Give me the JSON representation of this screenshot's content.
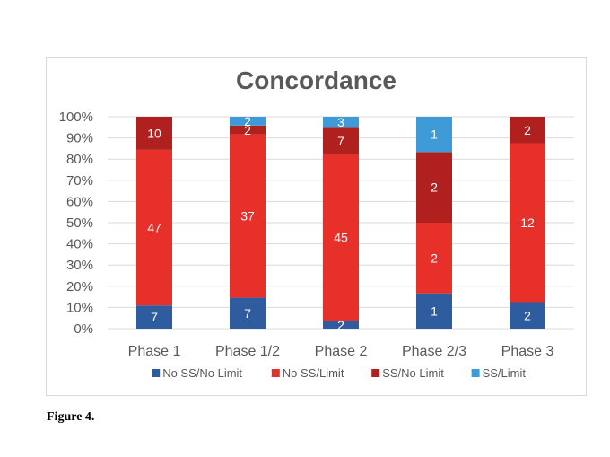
{
  "caption": "Figure 4.",
  "chart_data": {
    "type": "bar",
    "stacked": "percent",
    "title": "Concordance",
    "xlabel": "",
    "ylabel": "",
    "ylim": [
      0,
      100
    ],
    "yticks": [
      "0%",
      "10%",
      "20%",
      "30%",
      "40%",
      "50%",
      "60%",
      "70%",
      "80%",
      "90%",
      "100%"
    ],
    "grid": true,
    "legend_position": "bottom",
    "categories": [
      "Phase 1",
      "Phase 1/2",
      "Phase 2",
      "Phase 2/3",
      "Phase 3"
    ],
    "series": [
      {
        "name": "No SS/No Limit",
        "color": "#2e5c9e",
        "values": [
          7,
          7,
          2,
          1,
          2
        ]
      },
      {
        "name": "No SS/Limit",
        "color": "#e8302a",
        "values": [
          47,
          37,
          45,
          2,
          12
        ]
      },
      {
        "name": "SS/No Limit",
        "color": "#b0201f",
        "values": [
          10,
          2,
          7,
          2,
          2
        ]
      },
      {
        "name": "SS/Limit",
        "color": "#3f9ad8",
        "values": [
          0,
          2,
          3,
          1,
          0
        ]
      }
    ]
  }
}
